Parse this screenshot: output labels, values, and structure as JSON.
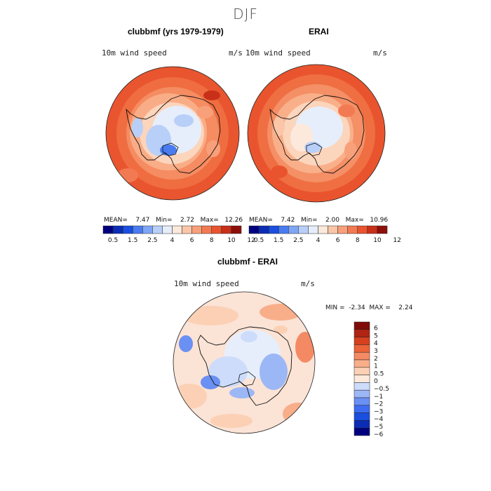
{
  "season": "DJF",
  "panels": {
    "model": {
      "title": "clubbmf (yrs 1979-1979)",
      "variable": "10m wind speed",
      "units": "m/s",
      "mean_label": "MEAN=",
      "mean": "7.47",
      "min_label": "Min=",
      "min": "2.72",
      "max_label": "Max=",
      "max": "12.26"
    },
    "obs": {
      "title": "ERAI",
      "variable": "10m wind speed",
      "units": "m/s",
      "mean_label": "MEAN=",
      "mean": "7.42",
      "min_label": "Min=",
      "min": "2.00",
      "max_label": "Max=",
      "max": "10.96"
    },
    "diff": {
      "title": "clubbmf - ERAI",
      "variable": "10m wind speed",
      "units": "m/s",
      "min_label": "MIN =",
      "min": "-2.34",
      "max_label": "MAX =",
      "max": "2.24"
    }
  },
  "colors": {
    "abs_scale": [
      "#00007f",
      "#0b2db5",
      "#1a4fe0",
      "#4a7cf0",
      "#7fa6f5",
      "#b8cff8",
      "#e6eefc",
      "#fde9dc",
      "#fbc6a8",
      "#f8a07a",
      "#f27a52",
      "#e9542e",
      "#c9301a",
      "#8e0f0a"
    ],
    "diff_scale": [
      "#00007f",
      "#0b2db5",
      "#1a4fe0",
      "#3d6cf0",
      "#6a90f3",
      "#9cb7f6",
      "#cddcfa",
      "#fde9dc",
      "#fcd0b4",
      "#f9ae8a",
      "#f48a63",
      "#ec6338",
      "#d6401e",
      "#b02413",
      "#7f0c08"
    ],
    "coast": "#111111",
    "model_ocean": "#ee6a3e",
    "obs_ocean": "#ef6f42",
    "diff_ocean": "#fbe3d6"
  },
  "chart_data": [
    {
      "type": "heatmap",
      "title": "clubbmf (yrs 1979-1979)",
      "variable": "10m wind speed",
      "units": "m/s",
      "projection": "south polar stereographic",
      "levels": [
        0.5,
        1,
        1.5,
        2,
        2.5,
        3,
        4,
        5,
        6,
        7,
        8,
        9,
        10,
        11,
        12
      ],
      "colorbar_ticks": [
        "0.5",
        "1.5",
        "2.5",
        "4",
        "6",
        "8",
        "10",
        "12"
      ],
      "mean": 7.47,
      "min": 2.72,
      "max": 12.26
    },
    {
      "type": "heatmap",
      "title": "ERAI",
      "variable": "10m wind speed",
      "units": "m/s",
      "projection": "south polar stereographic",
      "levels": [
        0.5,
        1,
        1.5,
        2,
        2.5,
        3,
        4,
        5,
        6,
        7,
        8,
        9,
        10,
        11,
        12
      ],
      "colorbar_ticks": [
        "0.5",
        "1.5",
        "2.5",
        "4",
        "6",
        "8",
        "10",
        "12"
      ],
      "mean": 7.42,
      "min": 2.0,
      "max": 10.96
    },
    {
      "type": "heatmap",
      "title": "clubbmf - ERAI",
      "variable": "10m wind speed",
      "units": "m/s",
      "projection": "south polar stereographic",
      "levels": [
        -6,
        -5,
        -4,
        -3,
        -2,
        -1,
        -0.5,
        0,
        0.5,
        1,
        2,
        3,
        4,
        5,
        6
      ],
      "colorbar_ticks": [
        "6",
        "5",
        "4",
        "3",
        "2",
        "1",
        "0.5",
        "0",
        "−0.5",
        "−1",
        "−2",
        "−3",
        "−4",
        "−5",
        "−6"
      ],
      "min": -2.34,
      "max": 2.24
    }
  ]
}
